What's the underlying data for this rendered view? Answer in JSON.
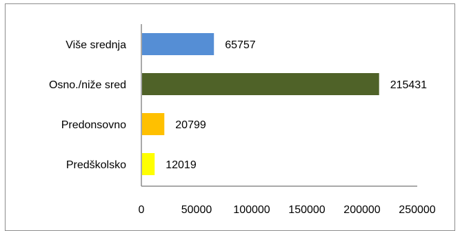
{
  "chart_data": {
    "type": "bar",
    "orientation": "horizontal",
    "categories": [
      "Više srednja",
      "Osno./niže sred",
      "Predonsovno",
      "Predškolsko"
    ],
    "values": [
      65757,
      215431,
      20799,
      12019
    ],
    "value_labels": [
      "65757",
      "215431",
      "20799",
      "12019"
    ],
    "colors": [
      "#558ed5",
      "#4f6228",
      "#ffc000",
      "#ffff00"
    ],
    "xlim": [
      0,
      250000
    ],
    "xticks": [
      0,
      50000,
      100000,
      150000,
      200000,
      250000
    ],
    "xtick_labels": [
      "0",
      "50000",
      "100000",
      "150000",
      "200000",
      "250000"
    ],
    "title": "",
    "xlabel": "",
    "ylabel": "",
    "grid": false,
    "legend": "none",
    "axis_color": "#8c8c8c"
  }
}
